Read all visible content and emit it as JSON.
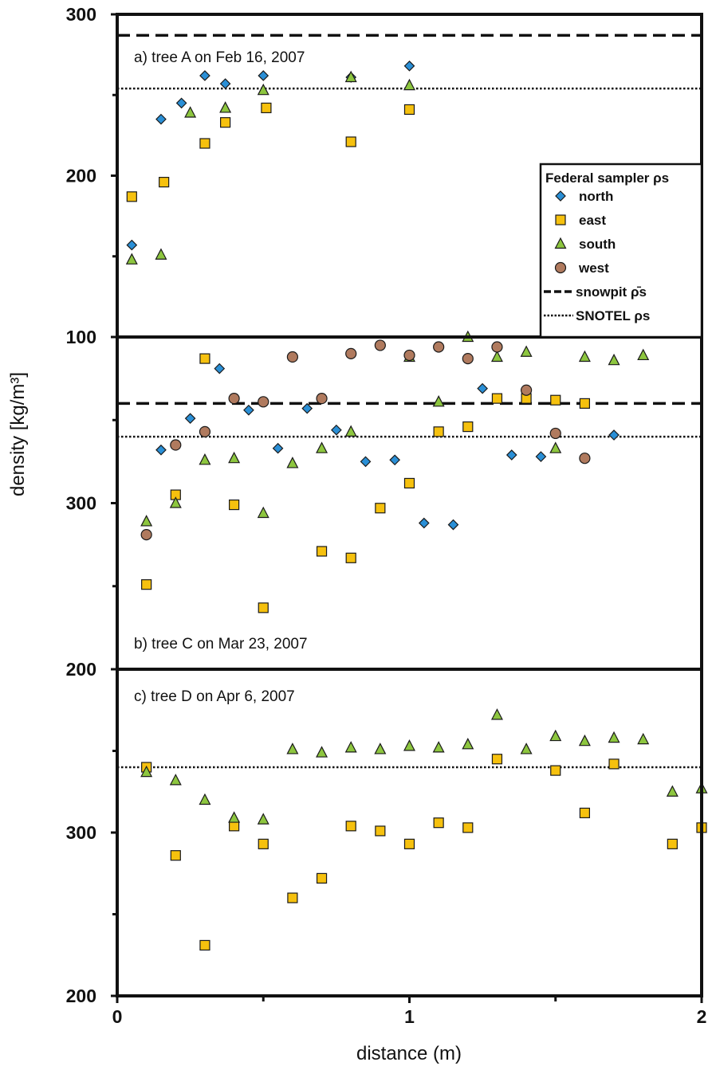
{
  "chart_data": {
    "type": "scatter",
    "xlabel": "distance (m)",
    "ylabel": "density [kg/m³]",
    "xlim": [
      0,
      2
    ],
    "x_ticks": [
      "0",
      "1",
      "2"
    ],
    "legend": {
      "position": "top-right of panel a",
      "title": "Federal sampler ρs",
      "entries": [
        {
          "key": "north",
          "label": "north",
          "marker": "diamond",
          "color": "#2a8fd6"
        },
        {
          "key": "east",
          "label": "east",
          "marker": "square",
          "color": "#f6c10e"
        },
        {
          "key": "south",
          "label": "south",
          "marker": "triangle",
          "color": "#8dc63f"
        },
        {
          "key": "west",
          "label": "west",
          "marker": "circle",
          "color": "#b07a5e"
        },
        {
          "key": "snowpit",
          "label": "snowpit ρ̄s",
          "line": "dashed"
        },
        {
          "key": "snotel",
          "label": "SNOTEL ρs",
          "line": "dotted"
        }
      ]
    },
    "panels": [
      {
        "id": "a",
        "label": "a) tree A on Feb 16, 2007",
        "ylim": [
          100,
          300
        ],
        "y_ticks": [
          "100",
          "200",
          "300"
        ],
        "snowpit": 287,
        "snotel": 254,
        "series": [
          {
            "name": "north",
            "x": [
              0.05,
              0.15,
              0.22,
              0.3,
              0.37,
              0.5,
              0.8,
              1.0
            ],
            "y": [
              157,
              235,
              245,
              262,
              257,
              262,
              261,
              268
            ]
          },
          {
            "name": "east",
            "x": [
              0.05,
              0.16,
              0.3,
              0.37,
              0.51,
              0.8,
              1.0
            ],
            "y": [
              187,
              196,
              220,
              233,
              242,
              221,
              241
            ]
          },
          {
            "name": "south",
            "x": [
              0.05,
              0.15,
              0.25,
              0.37,
              0.5,
              0.8,
              1.0
            ],
            "y": [
              148,
              151,
              239,
              242,
              253,
              261,
              256
            ]
          },
          {
            "name": "west",
            "x": [],
            "y": []
          }
        ]
      },
      {
        "id": "b",
        "label": "b) tree C on Mar 23, 2007",
        "ylim": [
          200,
          400
        ],
        "y_ticks": [
          "200",
          "300"
        ],
        "snowpit": 360,
        "snotel": 340,
        "series": [
          {
            "name": "north",
            "x": [
              0.15,
              0.25,
              0.35,
              0.45,
              0.55,
              0.65,
              0.75,
              0.85,
              0.95,
              1.05,
              1.15,
              1.25,
              1.35,
              1.45,
              1.7
            ],
            "y": [
              332,
              351,
              381,
              356,
              333,
              357,
              344,
              325,
              326,
              288,
              287,
              369,
              329,
              328,
              341
            ]
          },
          {
            "name": "east",
            "x": [
              0.1,
              0.2,
              0.3,
              0.4,
              0.5,
              0.7,
              0.8,
              0.9,
              1.0,
              1.1,
              1.2,
              1.3,
              1.4,
              1.5,
              1.6
            ],
            "y": [
              251,
              305,
              387,
              299,
              237,
              271,
              267,
              297,
              312,
              343,
              346,
              363,
              363,
              362,
              360
            ]
          },
          {
            "name": "south",
            "x": [
              0.1,
              0.2,
              0.3,
              0.4,
              0.5,
              0.6,
              0.7,
              0.8,
              1.0,
              1.1,
              1.2,
              1.3,
              1.4,
              1.5,
              1.6,
              1.7,
              1.8
            ],
            "y": [
              289,
              300,
              326,
              327,
              294,
              324,
              333,
              343,
              388,
              361,
              400,
              388,
              391,
              333,
              388,
              386,
              389
            ]
          },
          {
            "name": "west",
            "x": [
              0.1,
              0.2,
              0.3,
              0.4,
              0.5,
              0.6,
              0.7,
              0.8,
              0.9,
              1.0,
              1.1,
              1.2,
              1.3,
              1.4,
              1.5,
              1.6
            ],
            "y": [
              281,
              335,
              343,
              363,
              361,
              388,
              363,
              390,
              395,
              389,
              394,
              387,
              394,
              368,
              342,
              327
            ]
          }
        ]
      },
      {
        "id": "c",
        "label": "c) tree D on Apr 6, 2007",
        "ylim": [
          200,
          400
        ],
        "y_ticks": [
          "200",
          "300"
        ],
        "snotel": 340,
        "series": [
          {
            "name": "north",
            "x": [],
            "y": []
          },
          {
            "name": "east",
            "x": [
              0.1,
              0.2,
              0.3,
              0.4,
              0.5,
              0.6,
              0.7,
              0.8,
              0.9,
              1.0,
              1.1,
              1.2,
              1.3,
              1.5,
              1.6,
              1.7,
              1.9,
              2.0
            ],
            "y": [
              340,
              286,
              231,
              304,
              293,
              260,
              272,
              304,
              301,
              293,
              306,
              303,
              345,
              338,
              312,
              342,
              293,
              303
            ]
          },
          {
            "name": "south",
            "x": [
              0.1,
              0.2,
              0.3,
              0.4,
              0.5,
              0.6,
              0.7,
              0.8,
              0.9,
              1.0,
              1.1,
              1.2,
              1.3,
              1.4,
              1.5,
              1.6,
              1.7,
              1.8,
              1.9,
              2.0
            ],
            "y": [
              337,
              332,
              320,
              309,
              308,
              351,
              349,
              352,
              351,
              353,
              352,
              354,
              372,
              351,
              359,
              356,
              358,
              357,
              325,
              327
            ]
          },
          {
            "name": "west",
            "x": [],
            "y": []
          }
        ]
      }
    ]
  }
}
